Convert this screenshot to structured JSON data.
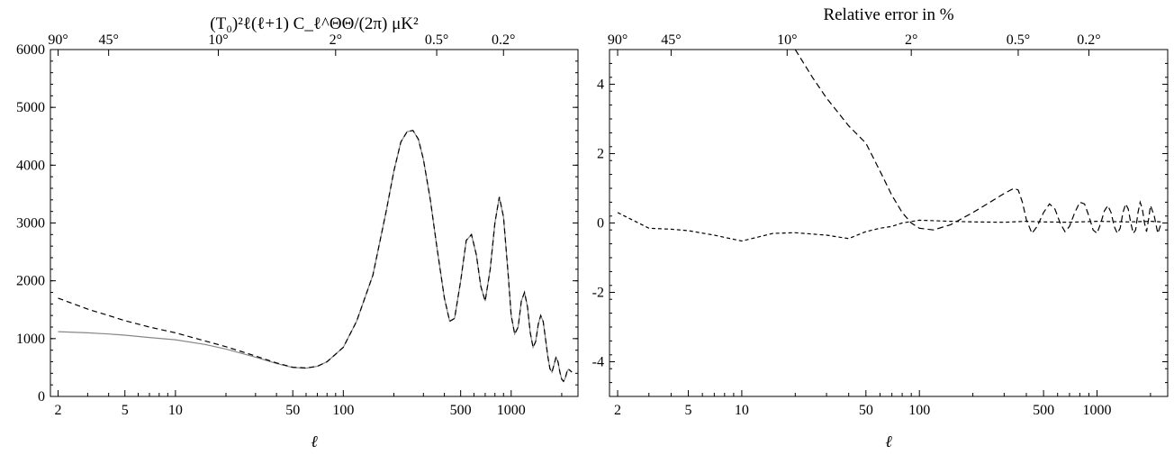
{
  "chart_data": [
    {
      "type": "line",
      "title": "(T₀)²ℓ(ℓ+1) C_ℓ^ΘΘ/(2π)  μK²",
      "xlabel": "ℓ",
      "ylabel": "",
      "xscale": "log",
      "xlim": [
        1.8,
        2500
      ],
      "ylim": [
        0,
        6000
      ],
      "xticks": [
        "2",
        "5",
        "10",
        "50",
        "100",
        "500",
        "1000"
      ],
      "yticks": [
        "0",
        "1000",
        "2000",
        "3000",
        "4000",
        "5000",
        "6000"
      ],
      "top_axis_ticks": [
        {
          "l": 2,
          "label": "90°"
        },
        {
          "l": 4,
          "label": "45°"
        },
        {
          "l": 18,
          "label": "10°"
        },
        {
          "l": 90,
          "label": "2°"
        },
        {
          "l": 360,
          "label": "0.5°"
        },
        {
          "l": 900,
          "label": "0.2°"
        }
      ],
      "series": [
        {
          "style": "solid",
          "color": "#888888",
          "x": [
            2,
            3,
            4,
            5,
            7,
            10,
            15,
            20,
            30,
            40,
            50,
            60,
            70,
            80,
            100,
            120,
            150,
            180,
            200,
            220,
            240,
            260,
            280,
            300,
            330,
            360,
            400,
            430,
            460,
            500,
            540,
            580,
            620,
            660,
            700,
            750,
            800,
            850,
            900,
            960,
            1000,
            1050,
            1100,
            1150,
            1200,
            1250,
            1300,
            1350,
            1400,
            1450,
            1500,
            1550,
            1600,
            1650,
            1700,
            1750,
            1800,
            1850,
            1900,
            1950,
            2000,
            2050,
            2100,
            2150,
            2200,
            2300
          ],
          "y": [
            1120,
            1100,
            1080,
            1060,
            1020,
            980,
            900,
            820,
            680,
            570,
            500,
            490,
            520,
            600,
            850,
            1300,
            2100,
            3200,
            3900,
            4400,
            4580,
            4600,
            4450,
            4100,
            3400,
            2600,
            1700,
            1300,
            1350,
            2000,
            2700,
            2800,
            2450,
            1900,
            1650,
            2200,
            3000,
            3450,
            3100,
            2100,
            1400,
            1080,
            1200,
            1650,
            1800,
            1550,
            1100,
            850,
            950,
            1250,
            1400,
            1300,
            1000,
            700,
            480,
            420,
            550,
            680,
            600,
            420,
            300,
            260,
            320,
            430,
            470,
            420
          ]
        },
        {
          "style": "dashed",
          "color": "#000000",
          "x": [
            2,
            3,
            4,
            5,
            7,
            10,
            15,
            20,
            30,
            40,
            50,
            60,
            70,
            80,
            100,
            120,
            150,
            180,
            200,
            220,
            240,
            260,
            280,
            300,
            330,
            360,
            400,
            430,
            460,
            500,
            540,
            580,
            620,
            660,
            700,
            750,
            800,
            850,
            900,
            960,
            1000,
            1050,
            1100,
            1150,
            1200,
            1250,
            1300,
            1350,
            1400,
            1450,
            1500,
            1550,
            1600,
            1650,
            1700,
            1750,
            1800,
            1850,
            1900,
            1950,
            2000,
            2050,
            2100,
            2150,
            2200,
            2300
          ],
          "y": [
            1700,
            1510,
            1400,
            1310,
            1200,
            1100,
            960,
            860,
            700,
            580,
            505,
            492,
            520,
            600,
            850,
            1300,
            2100,
            3200,
            3900,
            4400,
            4580,
            4600,
            4450,
            4100,
            3400,
            2600,
            1700,
            1300,
            1350,
            2000,
            2700,
            2800,
            2450,
            1900,
            1650,
            2200,
            3000,
            3450,
            3100,
            2100,
            1400,
            1080,
            1200,
            1650,
            1800,
            1550,
            1100,
            850,
            950,
            1250,
            1400,
            1300,
            1000,
            700,
            480,
            420,
            550,
            680,
            600,
            420,
            300,
            260,
            320,
            430,
            470,
            420
          ]
        }
      ]
    },
    {
      "type": "line",
      "title": "Relative error in %",
      "xlabel": "ℓ",
      "ylabel": "",
      "xscale": "log",
      "xlim": [
        1.8,
        2500
      ],
      "ylim": [
        -5,
        5
      ],
      "xticks": [
        "2",
        "5",
        "10",
        "50",
        "100",
        "500",
        "1000"
      ],
      "yticks": [
        "-4",
        "-2",
        "0",
        "2",
        "4"
      ],
      "top_axis_ticks": [
        {
          "l": 2,
          "label": "90°"
        },
        {
          "l": 4,
          "label": "45°"
        },
        {
          "l": 18,
          "label": "10°"
        },
        {
          "l": 90,
          "label": "2°"
        },
        {
          "l": 360,
          "label": "0.5°"
        },
        {
          "l": 900,
          "label": "0.2°"
        }
      ],
      "series": [
        {
          "style": "dashed-long",
          "color": "#000000",
          "x": [
            20,
            25,
            30,
            40,
            50,
            60,
            70,
            80,
            90,
            100,
            120,
            150,
            200,
            250,
            300,
            340,
            360,
            380,
            400,
            430,
            460,
            500,
            540,
            580,
            620,
            660,
            700,
            750,
            800,
            850,
            900,
            950,
            1000,
            1050,
            1100,
            1150,
            1200,
            1250,
            1300,
            1350,
            1400,
            1450,
            1500,
            1550,
            1600,
            1650,
            1700,
            1750,
            1800,
            1850,
            1900,
            1950,
            2000,
            2100,
            2200,
            2300
          ],
          "y": [
            5.0,
            4.2,
            3.6,
            2.8,
            2.3,
            1.5,
            0.8,
            0.3,
            0.0,
            -0.15,
            -0.2,
            -0.05,
            0.3,
            0.6,
            0.85,
            1.0,
            0.95,
            0.6,
            0.1,
            -0.3,
            -0.1,
            0.3,
            0.55,
            0.4,
            0.0,
            -0.25,
            -0.1,
            0.3,
            0.6,
            0.55,
            0.2,
            -0.2,
            -0.3,
            0.0,
            0.35,
            0.5,
            0.3,
            -0.1,
            -0.3,
            -0.15,
            0.3,
            0.55,
            0.4,
            0.0,
            -0.3,
            -0.2,
            0.3,
            0.6,
            0.4,
            0.0,
            -0.25,
            0.1,
            0.5,
            0.2,
            -0.3,
            0.0
          ]
        },
        {
          "style": "dashed-short",
          "color": "#000000",
          "x": [
            2,
            3,
            4,
            5,
            7,
            10,
            15,
            20,
            30,
            40,
            50,
            60,
            70,
            80,
            100,
            150,
            200,
            300,
            400,
            500,
            700,
            1000,
            1500,
            2000,
            2300
          ],
          "y": [
            0.3,
            -0.15,
            -0.18,
            -0.22,
            -0.35,
            -0.52,
            -0.3,
            -0.28,
            -0.35,
            -0.45,
            -0.25,
            -0.15,
            -0.1,
            0.0,
            0.08,
            0.05,
            0.03,
            0.02,
            0.05,
            0.03,
            0.02,
            0.05,
            0.03,
            0.05,
            0.03
          ]
        }
      ]
    }
  ]
}
